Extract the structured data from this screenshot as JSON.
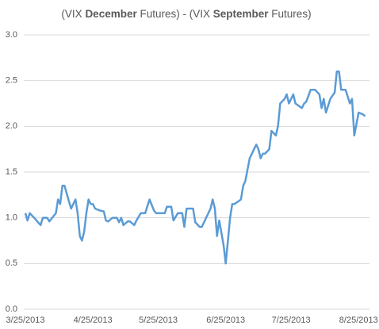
{
  "chart_data": {
    "type": "line",
    "title": [
      "(VIX ",
      "December",
      " Futures) - (VIX ",
      "September",
      " Futures)"
    ],
    "title_bold": [
      false,
      true,
      false,
      true,
      false
    ],
    "x": [
      "3/25/2013",
      "3/26/2013",
      "3/27/2013",
      "3/29/2013",
      "4/1/2013",
      "4/2/2013",
      "4/4/2013",
      "4/5/2013",
      "4/8/2013",
      "4/9/2013",
      "4/10/2013",
      "4/11/2013",
      "4/12/2013",
      "4/14/2013",
      "4/15/2013",
      "4/17/2013",
      "4/18/2013",
      "4/19/2013",
      "4/20/2013",
      "4/21/2013",
      "4/22/2013",
      "4/23/2013",
      "4/24/2013",
      "4/25/2013",
      "4/26/2013",
      "4/28/2013",
      "4/30/2013",
      "5/1/2013",
      "5/2/2013",
      "5/4/2013",
      "5/6/2013",
      "5/7/2013",
      "5/8/2013",
      "5/9/2013",
      "5/11/2013",
      "5/12/2013",
      "5/14/2013",
      "5/15/2013",
      "5/17/2013",
      "5/19/2013",
      "5/21/2013",
      "5/23/2013",
      "5/24/2013",
      "5/28/2013",
      "5/29/2013",
      "5/31/2013",
      "6/1/2013",
      "6/3/2013",
      "6/5/2013",
      "6/6/2013",
      "6/7/2013",
      "6/10/2013",
      "6/11/2013",
      "6/13/2013",
      "6/14/2013",
      "6/18/2013",
      "6/19/2013",
      "6/20/2013",
      "6/21/2013",
      "6/22/2013",
      "6/24/2013",
      "6/25/2013",
      "6/27/2013",
      "6/28/2013",
      "6/29/2013",
      "7/2/2013",
      "7/3/2013",
      "7/4/2013",
      "7/6/2013",
      "7/8/2013",
      "7/9/2013",
      "7/10/2013",
      "7/11/2013",
      "7/12/2013",
      "7/13/2013",
      "7/15/2013",
      "7/16/2013",
      "7/18/2013",
      "7/19/2013",
      "7/20/2013",
      "7/22/2013",
      "7/23/2013",
      "7/24/2013",
      "7/26/2013",
      "7/27/2013",
      "7/30/2013",
      "7/31/2013",
      "8/1/2013",
      "8/3/2013",
      "8/5/2013",
      "8/7/2013",
      "8/8/2013",
      "8/9/2013",
      "8/10/2013",
      "8/12/2013",
      "8/14/2013",
      "8/15/2013",
      "8/16/2013",
      "8/17/2013",
      "8/19/2013",
      "8/21/2013",
      "8/22/2013",
      "8/23/2013",
      "8/25/2013",
      "8/27/2013",
      "8/28/2013"
    ],
    "series": [
      {
        "name": "VIX Dec - Sep",
        "color": "#5b9bd5",
        "values": [
          1.05,
          0.97,
          1.05,
          1.0,
          0.92,
          1.0,
          1.0,
          0.96,
          1.05,
          1.2,
          1.15,
          1.35,
          1.35,
          1.18,
          1.1,
          1.2,
          1.05,
          0.8,
          0.75,
          0.85,
          1.05,
          1.2,
          1.15,
          1.15,
          1.1,
          1.08,
          1.07,
          0.97,
          0.96,
          1.0,
          1.0,
          0.95,
          1.0,
          0.92,
          0.96,
          0.96,
          0.92,
          0.97,
          1.05,
          1.05,
          1.2,
          1.08,
          1.05,
          1.05,
          1.12,
          1.12,
          0.97,
          1.05,
          1.05,
          0.9,
          1.1,
          1.1,
          0.95,
          0.9,
          0.9,
          1.1,
          1.2,
          1.1,
          0.8,
          0.97,
          0.7,
          0.5,
          1.0,
          1.15,
          1.15,
          1.2,
          1.35,
          1.4,
          1.65,
          1.75,
          1.8,
          1.75,
          1.65,
          1.7,
          1.7,
          1.75,
          1.95,
          1.9,
          2.0,
          2.25,
          2.3,
          2.35,
          2.25,
          2.35,
          2.25,
          2.2,
          2.25,
          2.27,
          2.4,
          2.4,
          2.35,
          2.2,
          2.3,
          2.15,
          2.3,
          2.37,
          2.6,
          2.6,
          2.4,
          2.4,
          2.25,
          2.3,
          1.9,
          2.15,
          2.13,
          2.11
        ]
      }
    ],
    "xlim": [
      "3/25/2013",
      "8/30/2013"
    ],
    "xticks": [
      "3/25/2013",
      "4/25/2013",
      "5/25/2013",
      "6/25/2013",
      "7/25/2013",
      "8/25/2013"
    ],
    "ylim": [
      0,
      3
    ],
    "yticks": [
      {
        "value": 0,
        "label": "0.0"
      },
      {
        "value": 0.5,
        "label": "0.5"
      },
      {
        "value": 1,
        "label": "1.0"
      },
      {
        "value": 1.5,
        "label": "1.5"
      },
      {
        "value": 2,
        "label": "2.0"
      },
      {
        "value": 2.5,
        "label": "2.5"
      },
      {
        "value": 3,
        "label": "3.0"
      }
    ],
    "grid": true
  }
}
